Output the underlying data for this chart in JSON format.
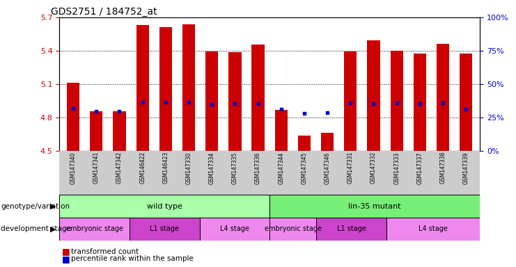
{
  "title": "GDS2751 / 184752_at",
  "samples": [
    "GSM147340",
    "GSM147341",
    "GSM147342",
    "GSM146422",
    "GSM146423",
    "GSM147330",
    "GSM147334",
    "GSM147335",
    "GSM147336",
    "GSM147344",
    "GSM147345",
    "GSM147346",
    "GSM147331",
    "GSM147332",
    "GSM147333",
    "GSM147337",
    "GSM147338",
    "GSM147339"
  ],
  "bar_heights": [
    5.115,
    4.855,
    4.855,
    5.63,
    5.615,
    5.635,
    5.395,
    5.39,
    5.455,
    4.87,
    4.635,
    4.66,
    5.395,
    5.495,
    5.4,
    5.375,
    5.46,
    5.375
  ],
  "percentile_ranks": [
    4.88,
    4.855,
    4.855,
    4.94,
    4.935,
    4.935,
    4.92,
    4.925,
    4.925,
    4.875,
    4.84,
    4.845,
    4.93,
    4.925,
    4.93,
    4.925,
    4.93,
    4.875
  ],
  "ylim": [
    4.5,
    5.7
  ],
  "yticks_left": [
    4.5,
    4.8,
    5.1,
    5.4,
    5.7
  ],
  "yticks_right": [
    0,
    25,
    50,
    75,
    100
  ],
  "bar_color": "#cc0000",
  "percentile_color": "#0000cc",
  "bar_bottom": 4.5,
  "genotype_groups": [
    {
      "label": "wild type",
      "start": 0,
      "end": 9,
      "color": "#99ee99"
    },
    {
      "label": "lin-35 mutant",
      "start": 9,
      "end": 18,
      "color": "#77dd77"
    }
  ],
  "dev_stage_colors": {
    "embryonic stage": "#ee88ee",
    "L1 stage": "#cc44cc",
    "L4 stage": "#ee88ee"
  },
  "dev_stage_groups": [
    {
      "label": "embryonic stage",
      "start": 0,
      "end": 3
    },
    {
      "label": "L1 stage",
      "start": 3,
      "end": 6
    },
    {
      "label": "L4 stage",
      "start": 6,
      "end": 9
    },
    {
      "label": "embryonic stage",
      "start": 9,
      "end": 11
    },
    {
      "label": "L1 stage",
      "start": 11,
      "end": 14
    },
    {
      "label": "L4 stage",
      "start": 14,
      "end": 18
    }
  ],
  "legend_items": [
    {
      "label": "transformed count",
      "color": "#cc0000"
    },
    {
      "label": "percentile rank within the sample",
      "color": "#0000cc"
    }
  ],
  "background_color": "#ffffff",
  "tick_color_left": "#cc0000",
  "tick_color_right": "#0000cc",
  "label_bg_color": "#cccccc",
  "geno_wt_color": "#aaffaa",
  "geno_mut_color": "#77ee77",
  "dev_color_embryonic": "#ee88ee",
  "dev_color_L1": "#cc44cc",
  "dev_color_L4": "#ee88ee"
}
